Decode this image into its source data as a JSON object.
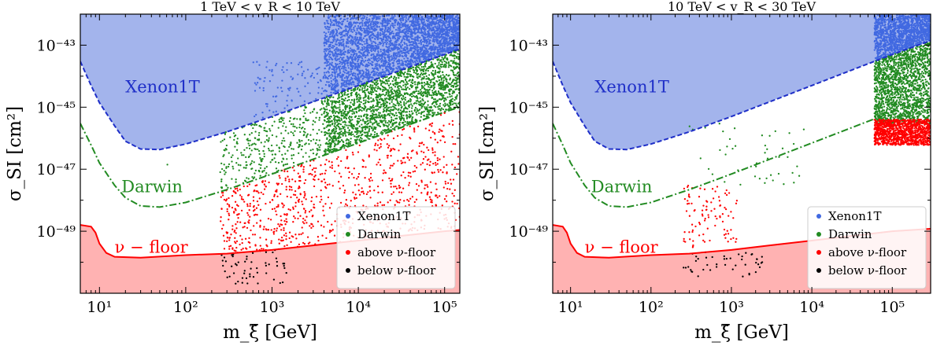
{
  "colors": {
    "xenon_fill": "#a3b4ec",
    "xenon_line": "#1f2fc8",
    "xenon_points": "#4169e1",
    "darwin": "#228b22",
    "nu_floor_fill": "#ffb2b2",
    "nu_floor_line": "#ff0000",
    "above_points": "#ff0000",
    "below_points": "#000000"
  },
  "chart_data": [
    {
      "type": "scatter",
      "title": "1 TeV < v_R < 10 TeV",
      "xlabel": "m_ξ̃ [GeV]",
      "ylabel": "σ_SI [cm²]",
      "xscale": "log",
      "yscale": "log",
      "xlim": [
        6,
        150000
      ],
      "ylim": [
        1e-51,
        1e-42
      ],
      "xticks": [
        {
          "v": 10,
          "label": "10¹"
        },
        {
          "v": 100,
          "label": "10²"
        },
        {
          "v": 1000,
          "label": "10³"
        },
        {
          "v": 10000,
          "label": "10⁴"
        },
        {
          "v": 100000,
          "label": "10⁵"
        }
      ],
      "yticks": [
        {
          "v": 1e-43,
          "label": "10⁻⁴³"
        },
        {
          "v": 1e-45,
          "label": "10⁻⁴⁵"
        },
        {
          "v": 1e-47,
          "label": "10⁻⁴⁷"
        },
        {
          "v": 1e-49,
          "label": "10⁻⁴⁹"
        }
      ],
      "region_labels": [
        {
          "text": "Xenon1T",
          "color": "#1f2fc8",
          "x": 20,
          "y": 3e-45
        },
        {
          "text": "Darwin",
          "color": "#228b22",
          "x": 18,
          "y": 1.8e-48
        },
        {
          "text": "ν − floor",
          "color": "#ff0000",
          "x": 15,
          "y": 2e-50
        }
      ],
      "legend": {
        "position": "lower-right",
        "entries": [
          {
            "label": "Xenon1T",
            "color": "#4169e1"
          },
          {
            "label": "Darwin",
            "color": "#228b22"
          },
          {
            "label": "above ν-floor",
            "color": "#ff0000"
          },
          {
            "label": "below ν-floor",
            "color": "#000000"
          }
        ]
      },
      "curves": {
        "xenon1t": [
          [
            6,
            3e-44
          ],
          [
            8,
            5e-45
          ],
          [
            10,
            1.4e-45
          ],
          [
            15,
            2.5e-46
          ],
          [
            20,
            8e-47
          ],
          [
            30,
            4.5e-47
          ],
          [
            50,
            4.3e-47
          ],
          [
            100,
            6.5e-47
          ],
          [
            300,
            1.6e-46
          ],
          [
            1000,
            5e-46
          ],
          [
            3000,
            1.5e-45
          ],
          [
            10000,
            5e-45
          ],
          [
            30000,
            1.5e-44
          ],
          [
            100000,
            5e-44
          ],
          [
            150000,
            7.5e-44
          ]
        ],
        "darwin": [
          [
            6,
            3e-46
          ],
          [
            8,
            6e-47
          ],
          [
            10,
            1.6e-47
          ],
          [
            15,
            3e-48
          ],
          [
            20,
            1.2e-48
          ],
          [
            30,
            6.5e-49
          ],
          [
            50,
            6e-49
          ],
          [
            100,
            8.5e-49
          ],
          [
            300,
            2.2e-48
          ],
          [
            1000,
            7e-48
          ],
          [
            3000,
            2.1e-47
          ],
          [
            10000,
            7e-47
          ],
          [
            30000,
            2.1e-46
          ],
          [
            100000,
            7e-46
          ],
          [
            150000,
            1e-45
          ]
        ],
        "nu_floor": [
          [
            6,
            1.6e-49
          ],
          [
            8,
            1.4e-49
          ],
          [
            9,
            9e-50
          ],
          [
            10,
            4e-50
          ],
          [
            12,
            2e-50
          ],
          [
            15,
            1.5e-50
          ],
          [
            30,
            1.4e-50
          ],
          [
            100,
            1.7e-50
          ],
          [
            300,
            1.9e-50
          ],
          [
            1000,
            2.5e-50
          ],
          [
            3000,
            3.5e-50
          ],
          [
            10000,
            5e-50
          ],
          [
            30000,
            7e-50
          ],
          [
            100000,
            1e-49
          ],
          [
            150000,
            1.1e-49
          ]
        ]
      },
      "scatter_regions": [
        {
          "category": "Xenon1T",
          "n": 3000,
          "xmin": 4000,
          "xmax": 150000,
          "ylow_curve": "xenon1t",
          "yhigh": 1e-42
        },
        {
          "category": "Xenon1T",
          "n": 100,
          "xmin": 600,
          "xmax": 4000,
          "ylow_curve": "xenon1t",
          "yhigh": 3e-44
        },
        {
          "category": "Darwin",
          "n": 2000,
          "xmin": 4000,
          "xmax": 150000,
          "ylow_curve": "darwin",
          "yhigh_curve": "xenon1t"
        },
        {
          "category": "Darwin",
          "n": 350,
          "xmin": 250,
          "xmax": 4000,
          "ylow_curve": "darwin",
          "yhigh_curve": "xenon1t"
        },
        {
          "category": "Darwin",
          "n": 1,
          "xmin": 60,
          "xmax": 62,
          "ylow": 1.4e-47,
          "yhigh": 1.6e-47
        },
        {
          "category": "above ν-floor",
          "n": 900,
          "xmin": 250,
          "xmax": 150000,
          "ylow_curve": "nu_floor",
          "yhigh_curve": "darwin"
        },
        {
          "category": "below ν-floor",
          "n": 55,
          "xmin": 250,
          "xmax": 1500,
          "ylow": 2e-51,
          "yhigh_curve": "nu_floor"
        }
      ]
    },
    {
      "type": "scatter",
      "title": "10 TeV < v_R < 30 TeV",
      "xlabel": "m_ξ̃ [GeV]",
      "ylabel": "σ_SI [cm²]",
      "xscale": "log",
      "yscale": "log",
      "xlim": [
        6,
        300000
      ],
      "ylim": [
        1e-51,
        1e-42
      ],
      "xticks": [
        {
          "v": 10,
          "label": "10¹"
        },
        {
          "v": 100,
          "label": "10²"
        },
        {
          "v": 1000,
          "label": "10³"
        },
        {
          "v": 10000,
          "label": "10⁴"
        },
        {
          "v": 100000,
          "label": "10⁵"
        }
      ],
      "yticks": [
        {
          "v": 1e-43,
          "label": "10⁻⁴³"
        },
        {
          "v": 1e-45,
          "label": "10⁻⁴⁵"
        },
        {
          "v": 1e-47,
          "label": "10⁻⁴⁷"
        },
        {
          "v": 1e-49,
          "label": "10⁻⁴⁹"
        }
      ],
      "region_labels": [
        {
          "text": "Xenon1T",
          "color": "#1f2fc8",
          "x": 20,
          "y": 3e-45
        },
        {
          "text": "Darwin",
          "color": "#228b22",
          "x": 18,
          "y": 1.8e-48
        },
        {
          "text": "ν − floor",
          "color": "#ff0000",
          "x": 15,
          "y": 2e-50
        }
      ],
      "legend": {
        "position": "lower-right",
        "entries": [
          {
            "label": "Xenon1T",
            "color": "#4169e1"
          },
          {
            "label": "Darwin",
            "color": "#228b22"
          },
          {
            "label": "above ν-floor",
            "color": "#ff0000"
          },
          {
            "label": "below ν-floor",
            "color": "#000000"
          }
        ]
      },
      "curves": {
        "xenon1t": [
          [
            6,
            3e-44
          ],
          [
            8,
            5e-45
          ],
          [
            10,
            1.4e-45
          ],
          [
            15,
            2.5e-46
          ],
          [
            20,
            8e-47
          ],
          [
            30,
            4.5e-47
          ],
          [
            50,
            4.3e-47
          ],
          [
            100,
            6.5e-47
          ],
          [
            300,
            1.6e-46
          ],
          [
            1000,
            5e-46
          ],
          [
            3000,
            1.5e-45
          ],
          [
            10000,
            5e-45
          ],
          [
            30000,
            1.5e-44
          ],
          [
            100000,
            5e-44
          ],
          [
            300000,
            1.4e-43
          ]
        ],
        "darwin": [
          [
            6,
            3e-46
          ],
          [
            8,
            6e-47
          ],
          [
            10,
            1.6e-47
          ],
          [
            15,
            3e-48
          ],
          [
            20,
            1.2e-48
          ],
          [
            30,
            6.5e-49
          ],
          [
            50,
            6e-49
          ],
          [
            100,
            8.5e-49
          ],
          [
            300,
            2.2e-48
          ],
          [
            1000,
            7e-48
          ],
          [
            3000,
            2.1e-47
          ],
          [
            10000,
            7e-47
          ],
          [
            30000,
            2.1e-46
          ],
          [
            100000,
            7e-46
          ],
          [
            300000,
            2e-45
          ]
        ],
        "nu_floor": [
          [
            6,
            1.6e-49
          ],
          [
            8,
            1.4e-49
          ],
          [
            9,
            9e-50
          ],
          [
            10,
            4e-50
          ],
          [
            12,
            2e-50
          ],
          [
            15,
            1.5e-50
          ],
          [
            30,
            1.4e-50
          ],
          [
            100,
            1.7e-50
          ],
          [
            300,
            1.9e-50
          ],
          [
            1000,
            2.5e-50
          ],
          [
            3000,
            3.5e-50
          ],
          [
            10000,
            5e-50
          ],
          [
            30000,
            7e-50
          ],
          [
            100000,
            1e-49
          ],
          [
            300000,
            1.2e-49
          ]
        ]
      },
      "scatter_regions": [
        {
          "category": "Xenon1T",
          "n": 1400,
          "xmin": 60000,
          "xmax": 300000,
          "ylow_curve": "xenon1t",
          "yhigh": 1e-42
        },
        {
          "category": "Darwin",
          "n": 1600,
          "xmin": 60000,
          "xmax": 300000,
          "ylow": 3e-46,
          "yhigh_curve": "xenon1t"
        },
        {
          "category": "Darwin",
          "n": 45,
          "xmin": 300,
          "xmax": 8000,
          "ylow": 3e-48,
          "yhigh": 3e-46
        },
        {
          "category": "above ν-floor",
          "n": 1100,
          "xmin": 60000,
          "xmax": 300000,
          "ylow": 6e-47,
          "yhigh": 4e-46
        },
        {
          "category": "above ν-floor",
          "n": 95,
          "xmin": 250,
          "xmax": 1200,
          "ylow": 3e-50,
          "yhigh": 3e-48
        },
        {
          "category": "below ν-floor",
          "n": 45,
          "xmin": 250,
          "xmax": 2500,
          "ylow": 3e-51,
          "yhigh_curve": "nu_floor"
        }
      ]
    }
  ]
}
